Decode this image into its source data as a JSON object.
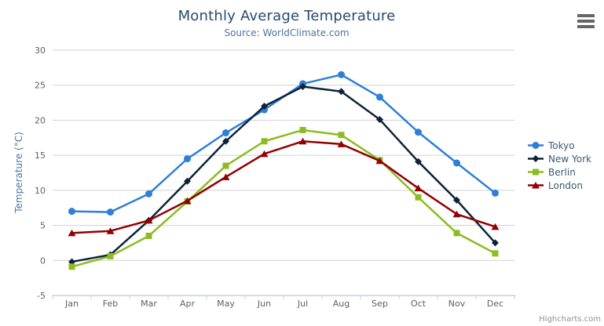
{
  "chart_data": {
    "type": "line",
    "title": "Monthly Average Temperature",
    "subtitle": "Source: WorldClimate.com",
    "xlabel": "",
    "ylabel": "Temperature (°C)",
    "categories": [
      "Jan",
      "Feb",
      "Mar",
      "Apr",
      "May",
      "Jun",
      "Jul",
      "Aug",
      "Sep",
      "Oct",
      "Nov",
      "Dec"
    ],
    "ylim": [
      -5,
      30
    ],
    "yticks": [
      -5,
      0,
      5,
      10,
      15,
      20,
      25,
      30
    ],
    "grid": "horizontal",
    "legend_position": "right",
    "series": [
      {
        "name": "Tokyo",
        "color": "#2f7ed8",
        "marker": "circle",
        "values": [
          7.0,
          6.9,
          9.5,
          14.5,
          18.2,
          21.5,
          25.2,
          26.5,
          23.3,
          18.3,
          13.9,
          9.6
        ]
      },
      {
        "name": "New York",
        "color": "#0d233a",
        "marker": "diamond",
        "values": [
          -0.2,
          0.8,
          5.7,
          11.3,
          17.0,
          22.0,
          24.8,
          24.1,
          20.1,
          14.1,
          8.6,
          2.5
        ]
      },
      {
        "name": "Berlin",
        "color": "#8bbc21",
        "marker": "square",
        "values": [
          -0.9,
          0.6,
          3.5,
          8.4,
          13.5,
          17.0,
          18.6,
          17.9,
          14.3,
          9.0,
          3.9,
          1.0
        ]
      },
      {
        "name": "London",
        "color": "#910000",
        "marker": "triangle",
        "values": [
          3.9,
          4.2,
          5.7,
          8.5,
          11.9,
          15.2,
          17.0,
          16.6,
          14.2,
          10.3,
          6.6,
          4.8
        ]
      }
    ],
    "credits": "Highcharts.com"
  },
  "colors": {
    "title": "#274b6d",
    "subtitle": "#4d759e",
    "axis_title": "#4d759e",
    "tick_label": "#606060",
    "gridline": "#d0d0d0",
    "axis_line": "#c0d0e0",
    "legend_text": "#3e576f",
    "credits_text": "#909090",
    "menu_icon": "#666666"
  },
  "header": {
    "menu_icon": "hamburger-menu"
  }
}
